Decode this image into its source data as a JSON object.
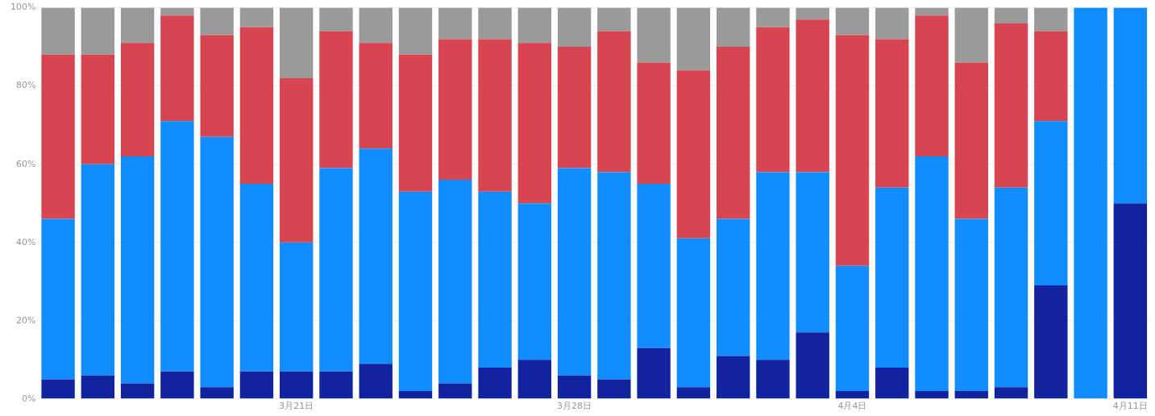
{
  "chart_data": {
    "type": "bar",
    "stacked": true,
    "grid": "y",
    "categories": [
      null,
      null,
      null,
      null,
      null,
      null,
      "3月21日",
      null,
      null,
      null,
      null,
      null,
      null,
      "3月28日",
      null,
      null,
      null,
      null,
      null,
      null,
      "4月4日",
      null,
      null,
      null,
      null,
      null,
      null,
      "4月11日"
    ],
    "ylim": [
      0,
      100
    ],
    "yticks": [
      {
        "value": 0,
        "label": "0%"
      },
      {
        "value": 20,
        "label": "20%"
      },
      {
        "value": 40,
        "label": "40%"
      },
      {
        "value": 60,
        "label": "60%"
      },
      {
        "value": 80,
        "label": "80%"
      },
      {
        "value": 100,
        "label": "100%"
      }
    ],
    "series": [
      {
        "color": "#12239e",
        "values": [
          5,
          6,
          4,
          7,
          3,
          7,
          7,
          7,
          9,
          2,
          4,
          8,
          10,
          6,
          5,
          13,
          3,
          11,
          10,
          17,
          2,
          8,
          2,
          2,
          3,
          29,
          0,
          50
        ]
      },
      {
        "color": "#118dff",
        "values": [
          41,
          54,
          58,
          64,
          64,
          48,
          33,
          52,
          55,
          51,
          52,
          45,
          40,
          53,
          53,
          42,
          38,
          35,
          48,
          41,
          32,
          46,
          60,
          44,
          51,
          42,
          100,
          50
        ]
      },
      {
        "color": "#d64550",
        "values": [
          42,
          28,
          29,
          27,
          26,
          40,
          42,
          35,
          27,
          35,
          36,
          39,
          41,
          31,
          36,
          31,
          43,
          44,
          37,
          39,
          59,
          38,
          36,
          40,
          42,
          23,
          0,
          0
        ]
      },
      {
        "color": "#9a9a9a",
        "values": [
          12,
          12,
          9,
          2,
          7,
          5,
          18,
          6,
          9,
          12,
          8,
          8,
          9,
          10,
          6,
          14,
          16,
          10,
          5,
          3,
          7,
          8,
          2,
          14,
          4,
          6,
          0,
          0
        ]
      }
    ]
  }
}
